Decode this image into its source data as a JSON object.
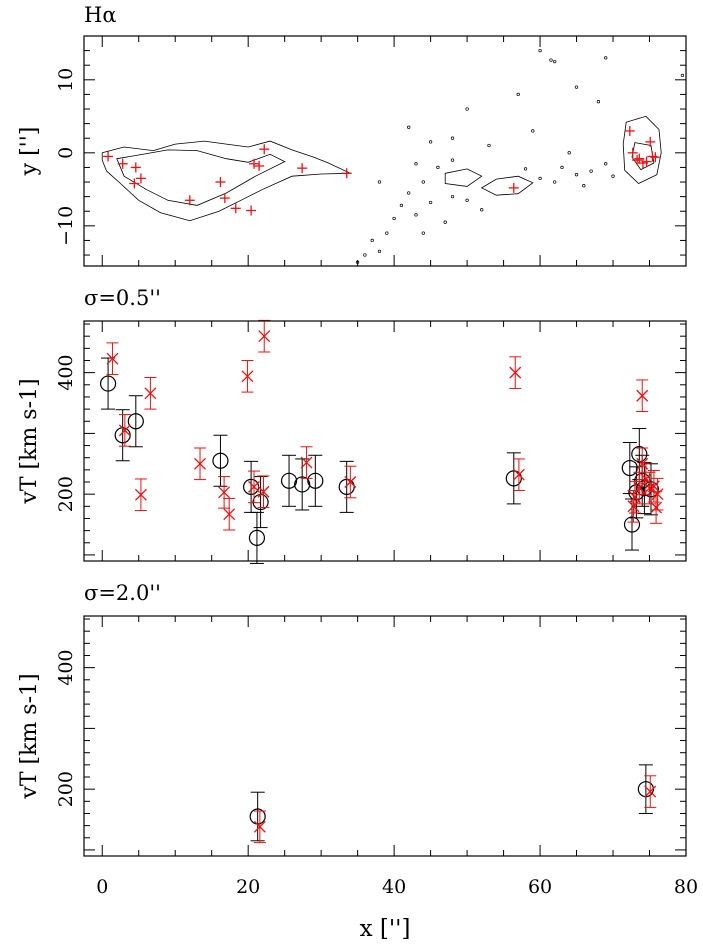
{
  "figure": {
    "shared_xlabel": "x ['']",
    "shared_xlim": [
      -2.5,
      80
    ],
    "shared_xticks": [
      0,
      20,
      40,
      60,
      80
    ]
  },
  "chart_data": [
    {
      "type": "scatter",
      "panel": "halpha-map",
      "title": "Hα",
      "xlabel": "x ['']",
      "ylabel": "y ['']",
      "xlim": [
        -2.5,
        80
      ],
      "ylim": [
        -15.5,
        16
      ],
      "yticks": [
        -10,
        0,
        10
      ],
      "contours_described": "Hα emission contours; main body from x≈0 to x≈34, fragmented knots from x≈45 to x≈60 and a compact blob near x≈72–76",
      "series": [
        {
          "name": "Hα knot positions",
          "marker": "+",
          "color": "#ee1111",
          "points": [
            [
              0.8,
              -0.5
            ],
            [
              2.8,
              -1.5
            ],
            [
              4.6,
              -2.0
            ],
            [
              5.3,
              -3.5
            ],
            [
              4.4,
              -4.2
            ],
            [
              12.0,
              -6.5
            ],
            [
              16.2,
              -4.0
            ],
            [
              16.8,
              -6.2
            ],
            [
              18.3,
              -7.6
            ],
            [
              20.4,
              -7.9
            ],
            [
              20.8,
              -1.5
            ],
            [
              21.5,
              -1.8
            ],
            [
              22.2,
              0.5
            ],
            [
              27.4,
              -2.1
            ],
            [
              33.5,
              -2.8
            ],
            [
              56.4,
              -4.8
            ],
            [
              72.3,
              3.0
            ],
            [
              72.7,
              0.0
            ],
            [
              73.3,
              -1.0
            ],
            [
              73.6,
              -0.8
            ],
            [
              74.1,
              -1.4
            ],
            [
              74.6,
              -1.2
            ],
            [
              75.1,
              1.5
            ],
            [
              75.4,
              -0.5
            ],
            [
              75.8,
              -0.6
            ]
          ]
        }
      ]
    },
    {
      "type": "scatter",
      "panel": "sigma-0.5",
      "title": "σ=0.5''",
      "xlabel": "x ['']",
      "ylabel": "vT [km s-1]",
      "xlim": [
        -2.5,
        80
      ],
      "ylim": [
        90,
        485
      ],
      "yticks": [
        200,
        400
      ],
      "series": [
        {
          "name": "circles",
          "marker": "o",
          "color": "#000000",
          "points": [
            {
              "x": 0.8,
              "y": 382,
              "err": 42
            },
            {
              "x": 2.8,
              "y": 297,
              "err": 42
            },
            {
              "x": 4.6,
              "y": 320,
              "err": 42
            },
            {
              "x": 16.2,
              "y": 255,
              "err": 42
            },
            {
              "x": 20.4,
              "y": 212,
              "err": 42
            },
            {
              "x": 21.2,
              "y": 128,
              "err": 42
            },
            {
              "x": 21.7,
              "y": 187,
              "err": 42
            },
            {
              "x": 25.6,
              "y": 222,
              "err": 42
            },
            {
              "x": 27.4,
              "y": 216,
              "err": 42
            },
            {
              "x": 29.2,
              "y": 222,
              "err": 42
            },
            {
              "x": 33.5,
              "y": 212,
              "err": 42
            },
            {
              "x": 56.4,
              "y": 226,
              "err": 42
            },
            {
              "x": 72.3,
              "y": 243,
              "err": 42
            },
            {
              "x": 72.6,
              "y": 150,
              "err": 42
            },
            {
              "x": 73.2,
              "y": 203,
              "err": 42
            },
            {
              "x": 73.6,
              "y": 266,
              "err": 42
            },
            {
              "x": 74.0,
              "y": 222,
              "err": 42
            },
            {
              "x": 74.3,
              "y": 210,
              "err": 42
            },
            {
              "x": 75.2,
              "y": 208,
              "err": 42
            }
          ]
        },
        {
          "name": "crosses",
          "marker": "x",
          "color": "#ee1111",
          "points": [
            {
              "x": 1.4,
              "y": 423,
              "err": 26
            },
            {
              "x": 3.1,
              "y": 305,
              "err": 26
            },
            {
              "x": 5.3,
              "y": 199,
              "err": 26
            },
            {
              "x": 6.6,
              "y": 366,
              "err": 26
            },
            {
              "x": 13.4,
              "y": 250,
              "err": 26
            },
            {
              "x": 16.7,
              "y": 203,
              "err": 26
            },
            {
              "x": 17.4,
              "y": 167,
              "err": 26
            },
            {
              "x": 19.9,
              "y": 394,
              "err": 26
            },
            {
              "x": 20.8,
              "y": 212,
              "err": 26
            },
            {
              "x": 22.2,
              "y": 460,
              "err": 26
            },
            {
              "x": 22.1,
              "y": 204,
              "err": 26
            },
            {
              "x": 28.0,
              "y": 252,
              "err": 26
            },
            {
              "x": 34.0,
              "y": 220,
              "err": 26
            },
            {
              "x": 56.6,
              "y": 400,
              "err": 26
            },
            {
              "x": 57.1,
              "y": 232,
              "err": 26
            },
            {
              "x": 72.8,
              "y": 180,
              "err": 26
            },
            {
              "x": 73.0,
              "y": 195,
              "err": 26
            },
            {
              "x": 73.6,
              "y": 210,
              "err": 26
            },
            {
              "x": 74.0,
              "y": 362,
              "err": 26
            },
            {
              "x": 74.0,
              "y": 250,
              "err": 26
            },
            {
              "x": 74.5,
              "y": 225,
              "err": 26
            },
            {
              "x": 75.0,
              "y": 210,
              "err": 26
            },
            {
              "x": 75.6,
              "y": 213,
              "err": 26
            },
            {
              "x": 75.9,
              "y": 178,
              "err": 26
            },
            {
              "x": 76.1,
              "y": 200,
              "err": 26
            }
          ]
        }
      ]
    },
    {
      "type": "scatter",
      "panel": "sigma-2.0",
      "title": "σ=2.0''",
      "xlabel": "x ['']",
      "ylabel": "vT [km s-1]",
      "xlim": [
        -2.5,
        80
      ],
      "ylim": [
        90,
        485
      ],
      "yticks": [
        200,
        400
      ],
      "series": [
        {
          "name": "circles",
          "marker": "o",
          "color": "#000000",
          "points": [
            {
              "x": 21.3,
              "y": 155,
              "err": 40
            },
            {
              "x": 74.5,
              "y": 200,
              "err": 40
            }
          ]
        },
        {
          "name": "crosses",
          "marker": "x",
          "color": "#ee1111",
          "points": [
            {
              "x": 21.6,
              "y": 138,
              "err": 26
            },
            {
              "x": 75.1,
              "y": 196,
              "err": 26
            }
          ]
        }
      ]
    }
  ]
}
